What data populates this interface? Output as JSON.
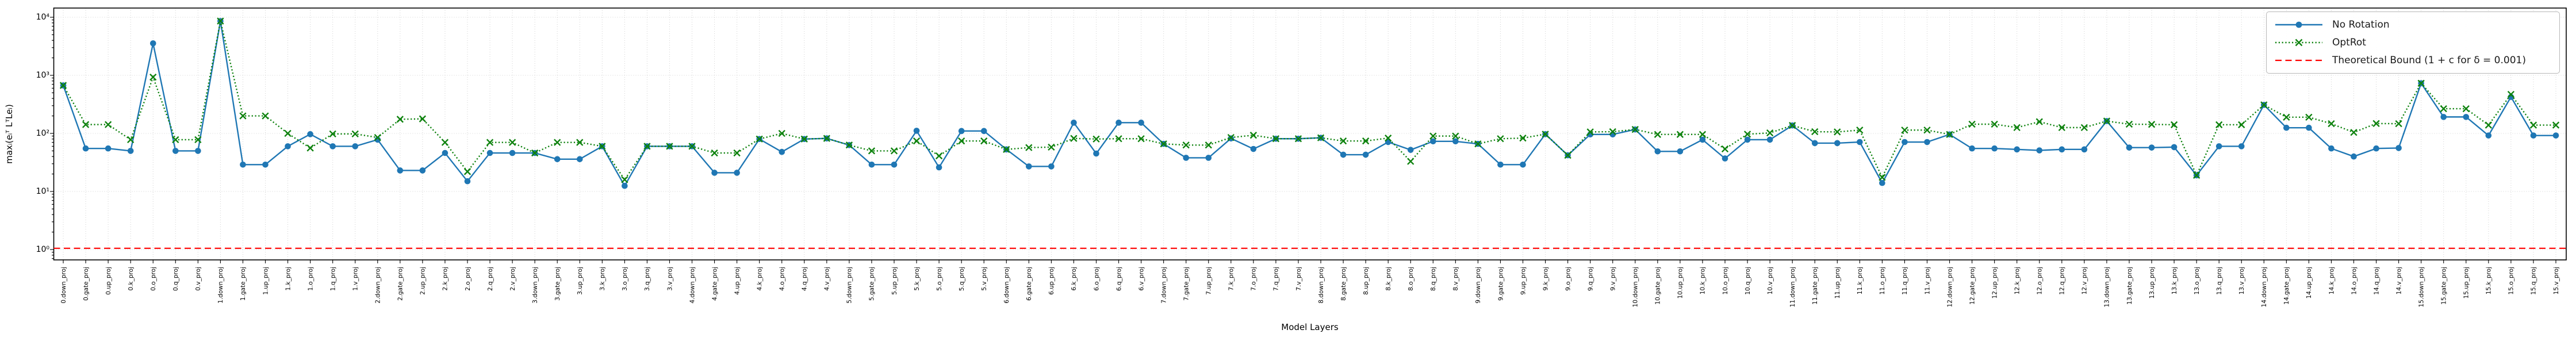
{
  "chart_data": {
    "type": "line",
    "title": "",
    "xlabel": "Model Layers",
    "ylabel": "maxᵢ(eᵢᵀ LᵀLeᵢ)",
    "yscale": "log",
    "ylim": [
      0.7,
      14000
    ],
    "grid": true,
    "legend_position": "upper right",
    "ytick_labels": [
      "10⁰",
      "10¹",
      "10²",
      "10³",
      "10⁴"
    ],
    "ytick_values": [
      1,
      10,
      100,
      1000,
      10000
    ],
    "categories": [
      "0.down_proj",
      "0.gate_proj",
      "0.up_proj",
      "0.k_proj",
      "0.o_proj",
      "0.q_proj",
      "0.v_proj",
      "1.down_proj",
      "1.gate_proj",
      "1.up_proj",
      "1.k_proj",
      "1.o_proj",
      "1.q_proj",
      "1.v_proj",
      "2.down_proj",
      "2.gate_proj",
      "2.up_proj",
      "2.k_proj",
      "2.o_proj",
      "2.q_proj",
      "2.v_proj",
      "3.down_proj",
      "3.gate_proj",
      "3.up_proj",
      "3.k_proj",
      "3.o_proj",
      "3.q_proj",
      "3.v_proj",
      "4.down_proj",
      "4.gate_proj",
      "4.up_proj",
      "4.k_proj",
      "4.o_proj",
      "4.q_proj",
      "4.v_proj",
      "5.down_proj",
      "5.gate_proj",
      "5.up_proj",
      "5.k_proj",
      "5.o_proj",
      "5.q_proj",
      "5.v_proj",
      "6.down_proj",
      "6.gate_proj",
      "6.up_proj",
      "6.k_proj",
      "6.o_proj",
      "6.q_proj",
      "6.v_proj",
      "7.down_proj",
      "7.gate_proj",
      "7.up_proj",
      "7.k_proj",
      "7.o_proj",
      "7.q_proj",
      "7.v_proj",
      "8.down_proj",
      "8.gate_proj",
      "8.up_proj",
      "8.k_proj",
      "8.o_proj",
      "8.q_proj",
      "8.v_proj",
      "9.down_proj",
      "9.gate_proj",
      "9.up_proj",
      "9.k_proj",
      "9.o_proj",
      "9.q_proj",
      "9.v_proj",
      "10.down_proj",
      "10.gate_proj",
      "10.up_proj",
      "10.k_proj",
      "10.o_proj",
      "10.q_proj",
      "10.v_proj",
      "11.down_proj",
      "11.gate_proj",
      "11.up_proj",
      "11.k_proj",
      "11.o_proj",
      "11.q_proj",
      "11.v_proj",
      "12.down_proj",
      "12.gate_proj",
      "12.up_proj",
      "12.k_proj",
      "12.o_proj",
      "12.q_proj",
      "12.v_proj",
      "13.down_proj",
      "13.gate_proj",
      "13.up_proj",
      "13.k_proj",
      "13.o_proj",
      "13.q_proj",
      "13.v_proj",
      "14.down_proj",
      "14.gate_proj",
      "14.up_proj",
      "14.k_proj",
      "14.o_proj",
      "14.q_proj",
      "14.v_proj",
      "15.down_proj",
      "15.gate_proj",
      "15.up_proj",
      "15.k_proj",
      "15.o_proj",
      "15.q_proj",
      "15.v_proj"
    ],
    "series": [
      {
        "name": "No Rotation",
        "color": "#1f77b4",
        "style": "solid",
        "marker": "circle",
        "values": [
          670,
          55,
          55,
          50,
          3550,
          50,
          50,
          8600,
          29,
          29,
          60,
          97,
          60,
          60,
          78,
          23,
          23,
          46,
          15,
          46,
          46,
          46,
          36,
          36,
          60,
          12.5,
          60,
          60,
          60,
          21,
          21,
          80,
          48,
          80,
          82,
          63,
          29,
          29,
          111,
          26,
          110,
          110,
          53,
          27,
          27,
          153,
          45,
          153,
          153,
          66,
          38,
          38,
          82,
          54,
          81,
          81,
          84,
          43,
          43,
          71,
          52,
          73,
          73,
          66,
          29,
          29,
          97,
          42,
          96,
          96,
          117,
          49,
          49,
          78,
          37,
          78,
          78,
          137,
          68,
          68,
          71,
          14,
          71,
          71,
          96,
          55,
          55,
          53,
          51,
          53,
          53,
          163,
          57,
          57,
          58,
          19,
          60,
          60,
          310,
          125,
          125,
          55,
          40,
          55,
          56,
          730,
          192,
          192,
          92,
          425,
          92,
          92
        ]
      },
      {
        "name": "OptRot",
        "color": "#0e820e",
        "style": "dotted",
        "marker": "x",
        "values": [
          670,
          142,
          142,
          78,
          930,
          78,
          78,
          8600,
          200,
          200,
          100,
          56,
          98,
          98,
          85,
          175,
          178,
          70,
          22,
          70,
          70,
          46,
          70,
          70,
          60,
          16,
          60,
          60,
          60,
          46,
          46,
          80,
          100,
          80,
          82,
          63,
          50,
          50,
          74,
          41,
          74,
          74,
          53,
          57,
          58,
          82,
          80,
          81,
          81,
          66,
          63,
          63,
          85,
          93,
          81,
          81,
          84,
          74,
          74,
          83,
          33,
          90,
          90,
          66,
          81,
          83,
          97,
          42,
          106,
          107,
          117,
          96,
          96,
          96,
          54,
          97,
          102,
          137,
          107,
          106,
          114,
          17.5,
          114,
          114,
          96,
          144,
          144,
          126,
          159,
          126,
          126,
          163,
          144,
          143,
          141,
          19,
          141,
          141,
          310,
          190,
          190,
          147,
          104,
          148,
          147,
          730,
          266,
          266,
          139,
          470,
          139,
          139
        ]
      }
    ],
    "bound": {
      "name": "Theoretical Bound (1 + c for δ = 0.001)",
      "color": "#ff0000",
      "style": "dashed",
      "value": 1.05
    }
  }
}
